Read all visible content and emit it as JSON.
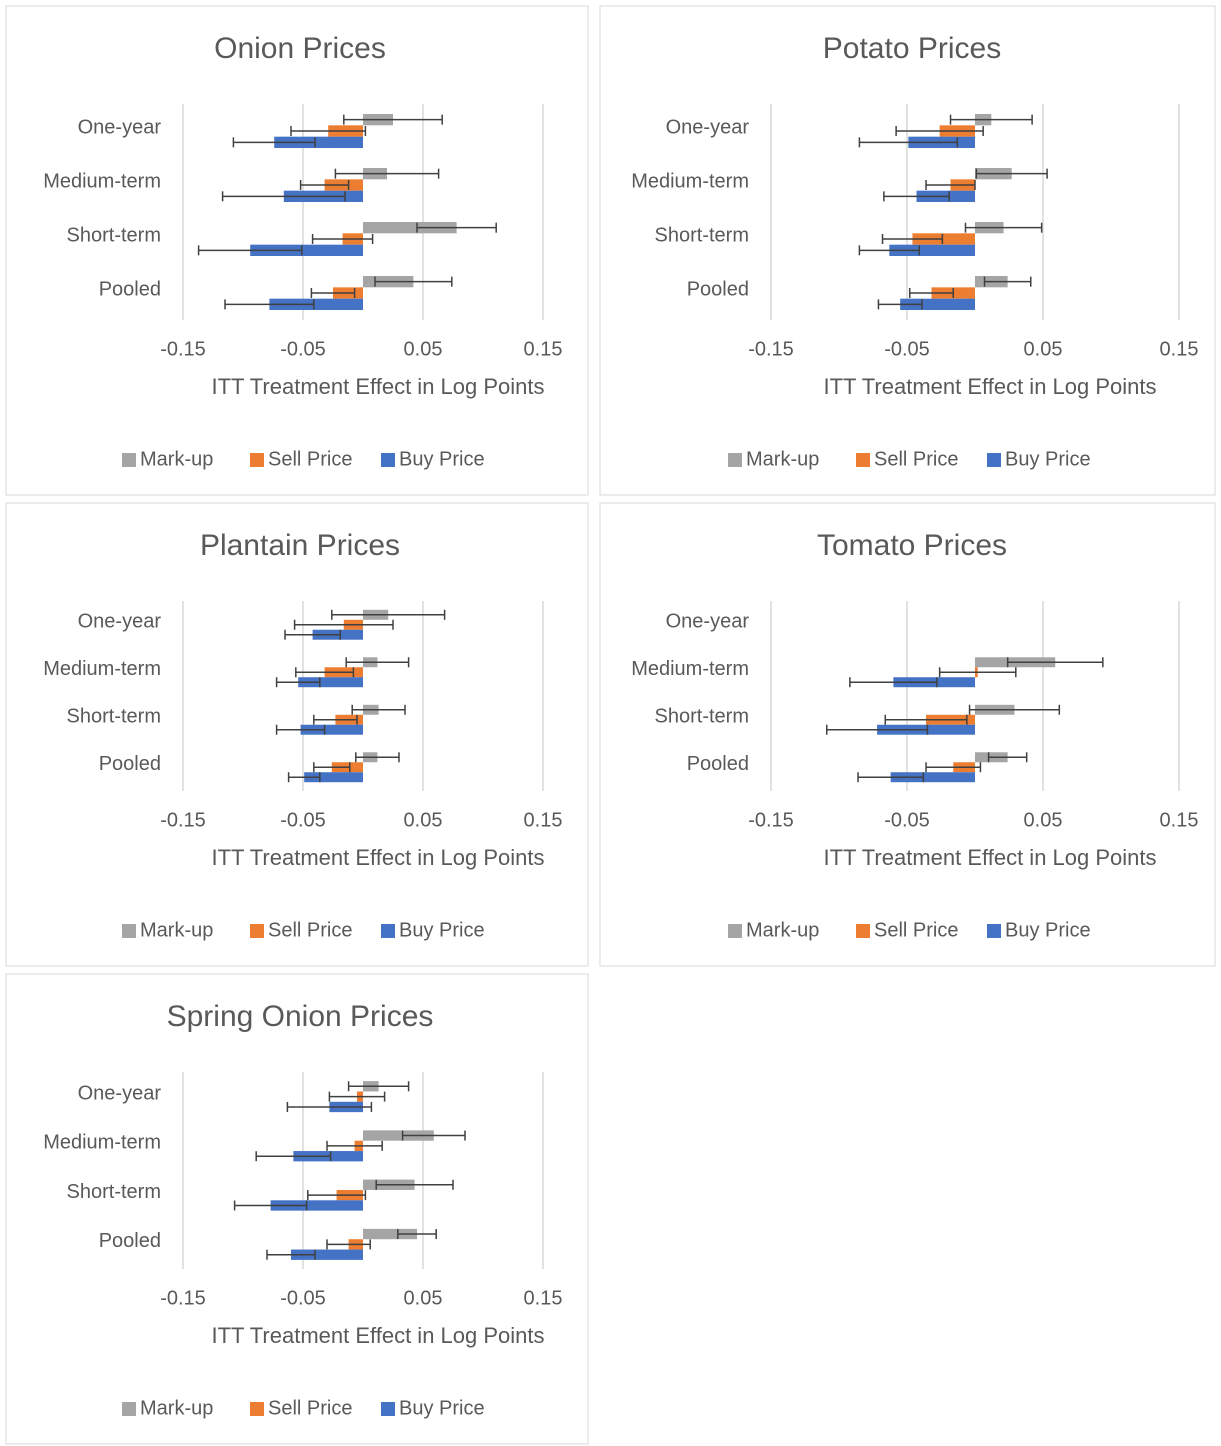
{
  "chart_data": [
    {
      "type": "bar",
      "title": "Onion Prices",
      "categories": [
        "One-year",
        "Medium-term",
        "Short-term",
        "Pooled"
      ],
      "series": [
        {
          "name": "Mark-up",
          "color": "#a5a5a5",
          "values": [
            0.025,
            0.02,
            0.078,
            0.042
          ],
          "errors": [
            0.041,
            0.043,
            0.033,
            0.032
          ]
        },
        {
          "name": "Sell Price",
          "color": "#ed7d31",
          "values": [
            -0.029,
            -0.032,
            -0.017,
            -0.025
          ],
          "errors": [
            0.031,
            0.02,
            0.025,
            0.018
          ]
        },
        {
          "name": "Buy Price",
          "color": "#4472c4",
          "values": [
            -0.074,
            -0.066,
            -0.094,
            -0.078
          ],
          "errors": [
            0.034,
            0.051,
            0.043,
            0.037
          ]
        }
      ],
      "xlabel": "ITT Treatment Effect in Log Points",
      "xlim": [
        -0.15,
        0.15
      ],
      "xticks": [
        -0.15,
        -0.05,
        0.05,
        0.15
      ],
      "grid": true,
      "legend": "bottom"
    },
    {
      "type": "bar",
      "title": "Potato Prices",
      "categories": [
        "One-year",
        "Medium-term",
        "Short-term",
        "Pooled"
      ],
      "series": [
        {
          "name": "Mark-up",
          "color": "#a5a5a5",
          "values": [
            0.012,
            0.027,
            0.021,
            0.024
          ],
          "errors": [
            0.03,
            0.026,
            0.028,
            0.017
          ]
        },
        {
          "name": "Sell Price",
          "color": "#ed7d31",
          "values": [
            -0.026,
            -0.018,
            -0.046,
            -0.032
          ],
          "errors": [
            0.032,
            0.018,
            0.022,
            0.016
          ]
        },
        {
          "name": "Buy Price",
          "color": "#4472c4",
          "values": [
            -0.049,
            -0.043,
            -0.063,
            -0.055
          ],
          "errors": [
            0.036,
            0.024,
            0.022,
            0.016
          ]
        }
      ],
      "xlabel": "ITT Treatment Effect in Log Points",
      "xlim": [
        -0.15,
        0.15
      ],
      "xticks": [
        -0.15,
        -0.05,
        0.05,
        0.15
      ],
      "grid": true,
      "legend": "bottom"
    },
    {
      "type": "bar",
      "title": "Plantain Prices",
      "categories": [
        "One-year",
        "Medium-term",
        "Short-term",
        "Pooled"
      ],
      "series": [
        {
          "name": "Mark-up",
          "color": "#a5a5a5",
          "values": [
            0.021,
            0.012,
            0.013,
            0.012
          ],
          "errors": [
            0.047,
            0.026,
            0.022,
            0.018
          ]
        },
        {
          "name": "Sell Price",
          "color": "#ed7d31",
          "values": [
            -0.016,
            -0.032,
            -0.023,
            -0.026
          ],
          "errors": [
            0.041,
            0.024,
            0.018,
            0.015
          ]
        },
        {
          "name": "Buy Price",
          "color": "#4472c4",
          "values": [
            -0.042,
            -0.054,
            -0.052,
            -0.049
          ],
          "errors": [
            0.023,
            0.018,
            0.02,
            0.013
          ]
        }
      ],
      "xlabel": "ITT Treatment Effect in Log Points",
      "xlim": [
        -0.15,
        0.15
      ],
      "xticks": [
        -0.15,
        -0.05,
        0.05,
        0.15
      ],
      "grid": true,
      "legend": "bottom"
    },
    {
      "type": "bar",
      "title": "Tomato Prices",
      "categories": [
        "One-year",
        "Medium-term",
        "Short-term",
        "Pooled"
      ],
      "series": [
        {
          "name": "Mark-up",
          "color": "#a5a5a5",
          "values": [
            null,
            0.059,
            0.029,
            0.024
          ],
          "errors": [
            null,
            0.035,
            0.033,
            0.014
          ]
        },
        {
          "name": "Sell Price",
          "color": "#ed7d31",
          "values": [
            null,
            0.002,
            -0.036,
            -0.016
          ],
          "errors": [
            null,
            0.028,
            0.03,
            0.02
          ]
        },
        {
          "name": "Buy Price",
          "color": "#4472c4",
          "values": [
            null,
            -0.06,
            -0.072,
            -0.062
          ],
          "errors": [
            null,
            0.032,
            0.037,
            0.024
          ]
        }
      ],
      "xlabel": "ITT Treatment Effect in Log Points",
      "xlim": [
        -0.15,
        0.15
      ],
      "xticks": [
        -0.15,
        -0.05,
        0.05,
        0.15
      ],
      "grid": true,
      "legend": "bottom"
    },
    {
      "type": "bar",
      "title": "Spring Onion Prices",
      "categories": [
        "One-year",
        "Medium-term",
        "Short-term",
        "Pooled"
      ],
      "series": [
        {
          "name": "Mark-up",
          "color": "#a5a5a5",
          "values": [
            0.013,
            0.059,
            0.043,
            0.045
          ],
          "errors": [
            0.025,
            0.026,
            0.032,
            0.016
          ]
        },
        {
          "name": "Sell Price",
          "color": "#ed7d31",
          "values": [
            -0.005,
            -0.007,
            -0.022,
            -0.012
          ],
          "errors": [
            0.023,
            0.023,
            0.024,
            0.018
          ]
        },
        {
          "name": "Buy Price",
          "color": "#4472c4",
          "values": [
            -0.028,
            -0.058,
            -0.077,
            -0.06
          ],
          "errors": [
            0.035,
            0.031,
            0.03,
            0.02
          ]
        }
      ],
      "xlabel": "ITT Treatment Effect in Log Points",
      "xlim": [
        -0.15,
        0.15
      ],
      "xticks": [
        -0.15,
        -0.05,
        0.05,
        0.15
      ],
      "grid": true,
      "legend": "bottom"
    }
  ]
}
